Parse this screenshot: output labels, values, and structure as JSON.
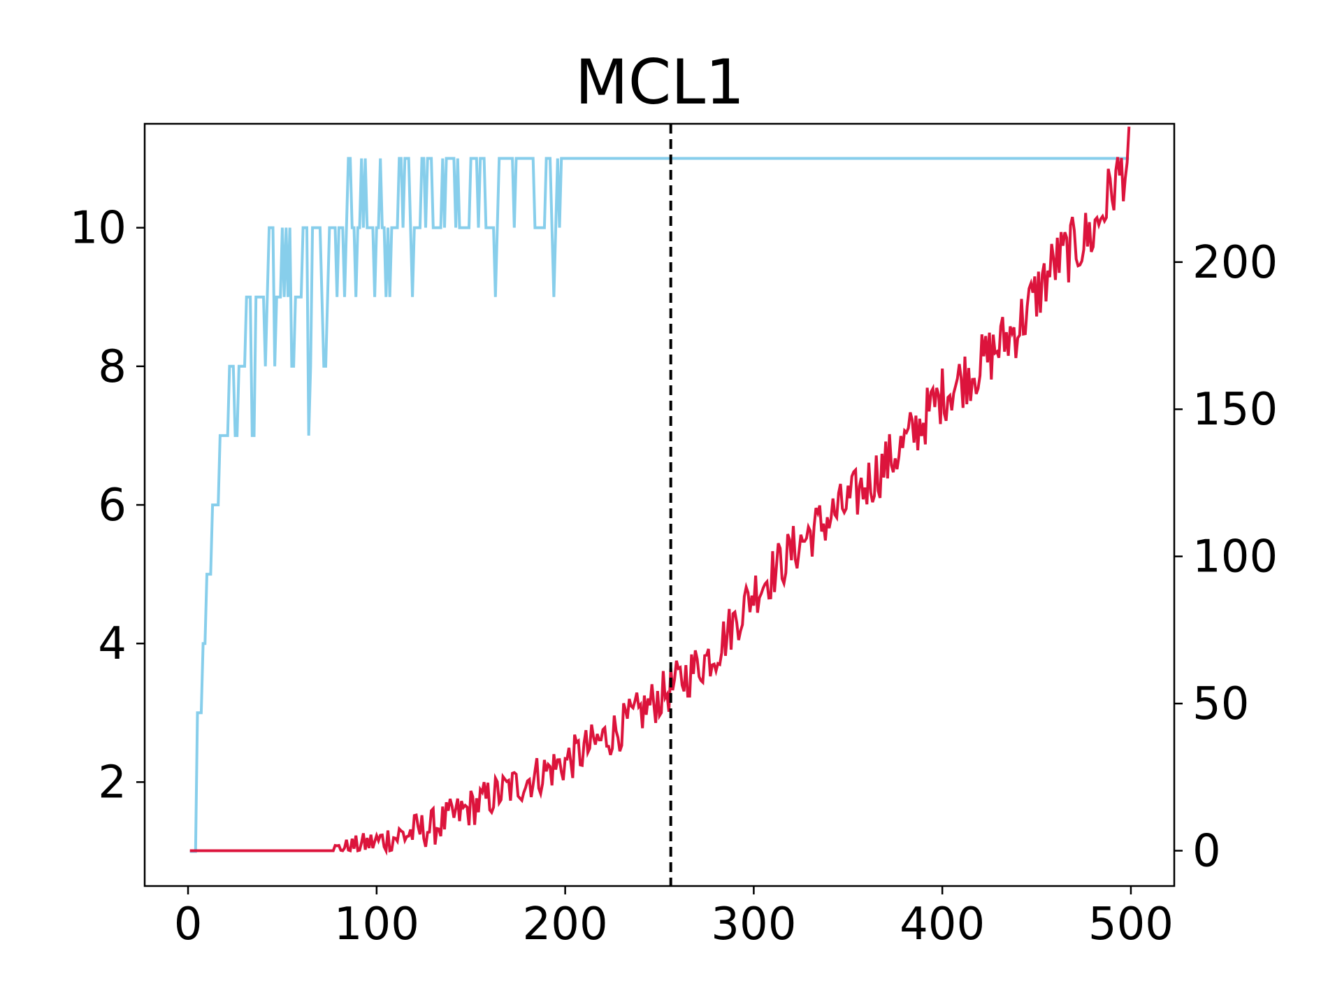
{
  "chart_data": {
    "type": "line",
    "title": "MCL1",
    "xlabel": "",
    "ylabel": "",
    "y2label": "",
    "xlim": [
      -23,
      523
    ],
    "ylim": [
      0.5,
      11.5
    ],
    "y2lim": [
      -12,
      247
    ],
    "x_ticks": [
      0,
      100,
      200,
      300,
      400,
      500
    ],
    "y_ticks": [
      2,
      4,
      6,
      8,
      10
    ],
    "y2_ticks": [
      0,
      50,
      100,
      150,
      200
    ],
    "grid": false,
    "legend": "none",
    "vline": {
      "x": 256,
      "style": "dashed",
      "color": "#000000"
    },
    "colors": {
      "series_left": "#87CEEB",
      "series_right": "#DC143C"
    },
    "series": [
      {
        "axis": "left",
        "color": "#87CEEB",
        "x_range": [
          1,
          499
        ],
        "steps": [
          [
            1,
            1
          ],
          [
            5,
            3
          ],
          [
            8,
            4
          ],
          [
            10,
            5
          ],
          [
            13,
            6
          ],
          [
            17,
            7
          ],
          [
            20,
            7
          ],
          [
            22,
            8
          ],
          [
            25,
            7
          ],
          [
            27,
            8
          ],
          [
            30,
            8
          ],
          [
            31,
            9
          ],
          [
            34,
            7
          ],
          [
            36,
            9
          ],
          [
            40,
            9
          ],
          [
            43,
            10
          ],
          [
            46,
            9
          ],
          [
            50,
            10
          ],
          [
            55,
            9
          ],
          [
            60,
            10
          ],
          [
            64,
            8
          ],
          [
            66,
            10
          ],
          [
            72,
            9
          ],
          [
            75,
            10
          ],
          [
            80,
            10
          ],
          [
            85,
            11
          ],
          [
            88,
            10
          ],
          [
            92,
            11
          ],
          [
            95,
            10
          ],
          [
            100,
            11
          ],
          [
            105,
            10
          ],
          [
            112,
            11
          ],
          [
            118,
            10
          ],
          [
            124,
            11
          ],
          [
            130,
            10
          ],
          [
            135,
            11
          ],
          [
            140,
            11
          ],
          [
            145,
            10
          ],
          [
            150,
            11
          ],
          [
            158,
            10
          ],
          [
            165,
            11
          ],
          [
            170,
            11
          ],
          [
            185,
            10
          ],
          [
            190,
            11
          ],
          [
            193,
            10
          ],
          [
            196,
            11
          ],
          [
            499,
            11
          ]
        ],
        "noise": [
          [
            40,
            120,
            0.35
          ],
          [
            120,
            200,
            0.2
          ]
        ]
      },
      {
        "axis": "right",
        "color": "#DC143C",
        "x_range": [
          1,
          499
        ],
        "flat_until": 73,
        "anchors": [
          [
            1,
            0
          ],
          [
            73,
            0
          ],
          [
            100,
            3
          ],
          [
            130,
            8
          ],
          [
            160,
            18
          ],
          [
            200,
            30
          ],
          [
            230,
            42
          ],
          [
            256,
            55
          ],
          [
            280,
            68
          ],
          [
            300,
            88
          ],
          [
            330,
            108
          ],
          [
            350,
            118
          ],
          [
            380,
            138
          ],
          [
            400,
            155
          ],
          [
            420,
            165
          ],
          [
            440,
            178
          ],
          [
            460,
            200
          ],
          [
            480,
            210
          ],
          [
            490,
            225
          ],
          [
            499,
            235
          ]
        ],
        "noise_amplitude": 5
      }
    ]
  }
}
